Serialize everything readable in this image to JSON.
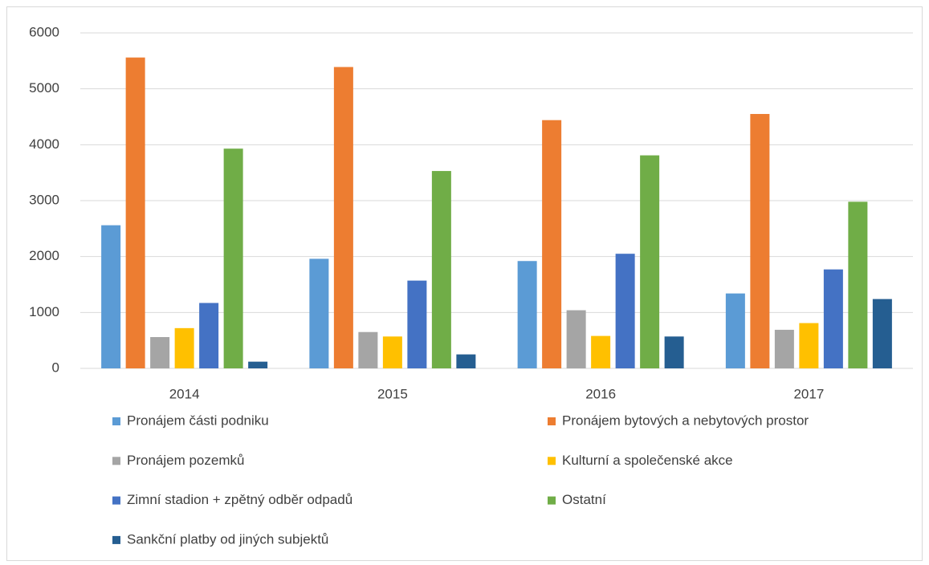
{
  "chart_data": {
    "type": "bar",
    "categories": [
      "2014",
      "2015",
      "2016",
      "2017"
    ],
    "series": [
      {
        "name": "Pronájem části podniku",
        "color": "#5b9bd5",
        "values": [
          2560,
          1960,
          1920,
          1340
        ]
      },
      {
        "name": "Pronájem bytových a nebytových prostor",
        "color": "#ed7d31",
        "values": [
          5560,
          5390,
          4440,
          4550
        ]
      },
      {
        "name": "Pronájem pozemků",
        "color": "#a5a5a5",
        "values": [
          560,
          650,
          1040,
          690
        ]
      },
      {
        "name": "Kulturní a společenské akce",
        "color": "#ffc000",
        "values": [
          720,
          570,
          580,
          810
        ]
      },
      {
        "name": "Zimní stadion + zpětný odběr odpadů",
        "color": "#4472c4",
        "values": [
          1170,
          1570,
          2050,
          1770
        ]
      },
      {
        "name": "Ostatní",
        "color": "#70ad47",
        "values": [
          3930,
          3530,
          3810,
          2980
        ]
      },
      {
        "name": "Sankční platby od jiných subjektů",
        "color": "#255e91",
        "values": [
          120,
          250,
          570,
          1240
        ]
      }
    ],
    "ylim": [
      0,
      6000
    ],
    "yticks": [
      0,
      1000,
      2000,
      3000,
      4000,
      5000,
      6000
    ],
    "grid": true,
    "legend": "bottom"
  }
}
